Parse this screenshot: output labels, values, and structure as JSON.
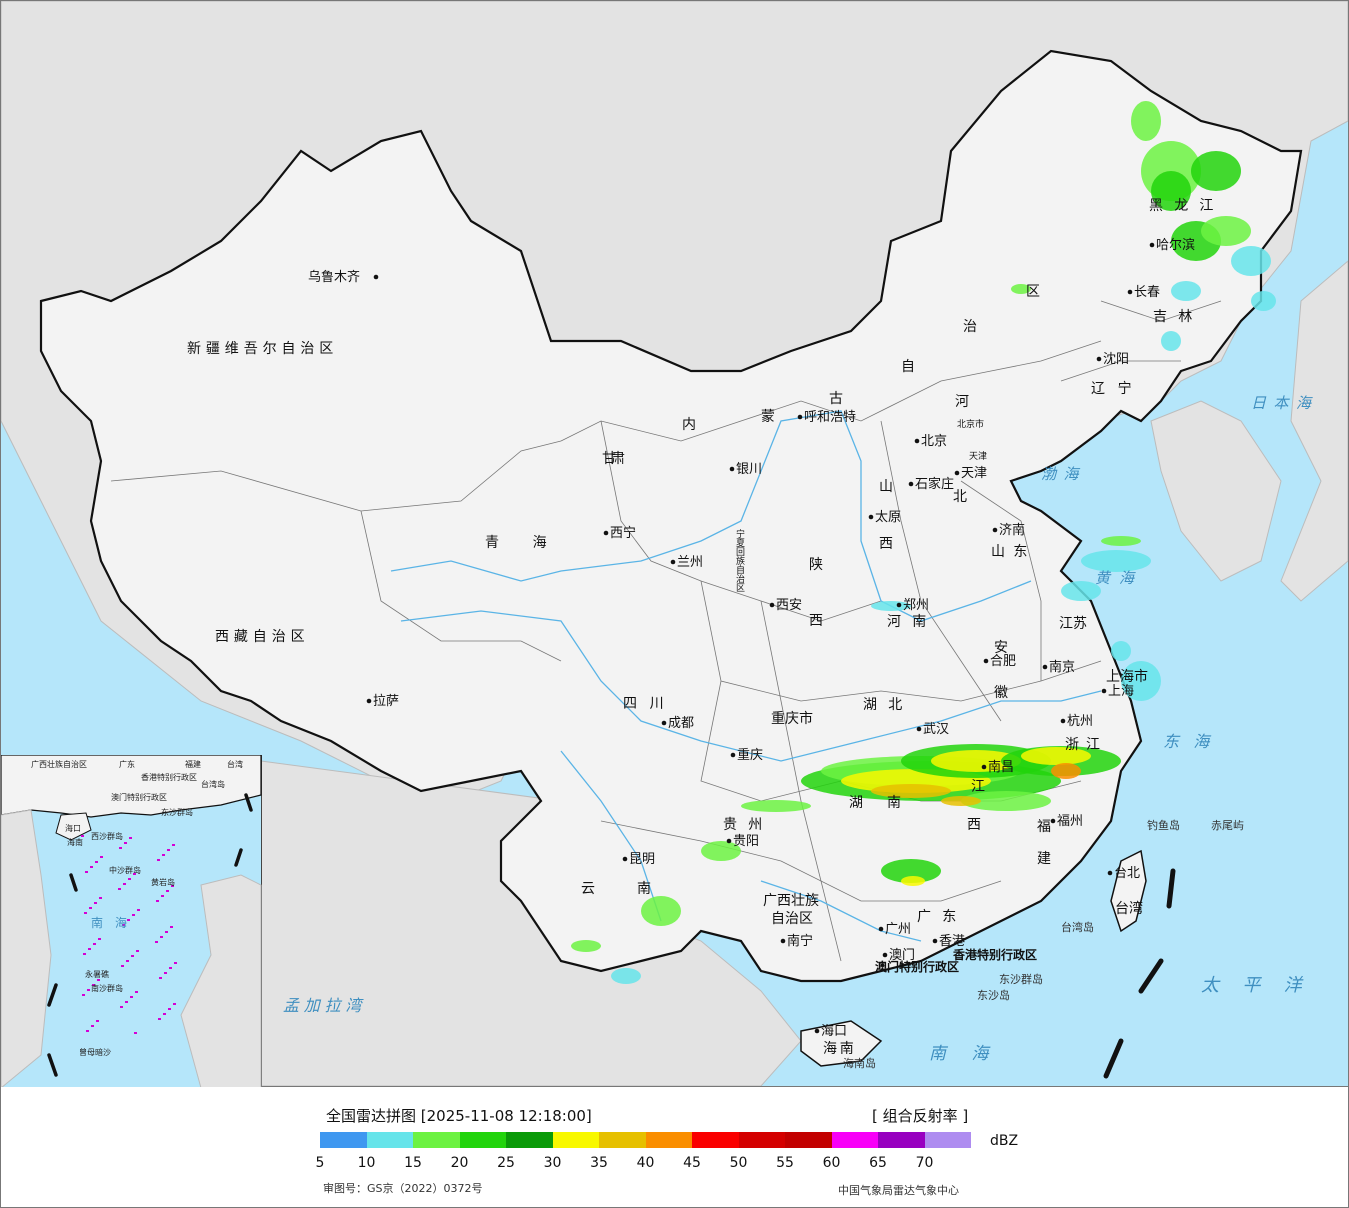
{
  "map": {
    "colors": {
      "sea": "#b5e6fa",
      "land_china": "#f2f2f2",
      "land_neighbor": "#e6e6e6",
      "border": "#111111",
      "river": "#5ab4e6"
    },
    "provinces": [
      {
        "name": "新疆维吾尔自治区"
      },
      {
        "name": "西藏自治区"
      },
      {
        "name": "青海"
      },
      {
        "name": "甘"
      },
      {
        "name": "肃"
      },
      {
        "name": "内"
      },
      {
        "name": "蒙"
      },
      {
        "name": "古"
      },
      {
        "name": "自"
      },
      {
        "name": "治"
      },
      {
        "name": "区"
      },
      {
        "name": "黑龙江"
      },
      {
        "name": "吉林"
      },
      {
        "name": "辽宁"
      },
      {
        "name": "河"
      },
      {
        "name": "北"
      },
      {
        "name": "山"
      },
      {
        "name": "西"
      },
      {
        "name": "陕"
      },
      {
        "name": "西"
      },
      {
        "name": "山东"
      },
      {
        "name": "河南"
      },
      {
        "name": "江苏"
      },
      {
        "name": "安"
      },
      {
        "name": "徽"
      },
      {
        "name": "上海市"
      },
      {
        "name": "浙江"
      },
      {
        "name": "湖北"
      },
      {
        "name": "湖"
      },
      {
        "name": "南"
      },
      {
        "name": "江"
      },
      {
        "name": "西"
      },
      {
        "name": "福"
      },
      {
        "name": "建"
      },
      {
        "name": "四川"
      },
      {
        "name": "重庆市"
      },
      {
        "name": "贵州"
      },
      {
        "name": "云"
      },
      {
        "name": "南"
      },
      {
        "name": "广西壮族"
      },
      {
        "name": "自治区"
      },
      {
        "name": "广东"
      },
      {
        "name": "海南"
      },
      {
        "name": "台湾"
      },
      {
        "name": "宁夏回族自治区"
      },
      {
        "name": "天津"
      },
      {
        "name": "北京市"
      },
      {
        "name": "香港特别行政区"
      },
      {
        "name": "澳门特别行政区"
      }
    ],
    "cities": [
      {
        "name": "乌鲁木齐"
      },
      {
        "name": "拉萨"
      },
      {
        "name": "西宁"
      },
      {
        "name": "兰州"
      },
      {
        "name": "银川"
      },
      {
        "name": "呼和浩特"
      },
      {
        "name": "哈尔滨"
      },
      {
        "name": "长春"
      },
      {
        "name": "沈阳"
      },
      {
        "name": "北京"
      },
      {
        "name": "天津"
      },
      {
        "name": "石家庄"
      },
      {
        "name": "太原"
      },
      {
        "name": "济南"
      },
      {
        "name": "郑州"
      },
      {
        "name": "西安"
      },
      {
        "name": "南京"
      },
      {
        "name": "合肥"
      },
      {
        "name": "上海"
      },
      {
        "name": "杭州"
      },
      {
        "name": "武汉"
      },
      {
        "name": "南昌"
      },
      {
        "name": "福州"
      },
      {
        "name": "台北"
      },
      {
        "name": "成都"
      },
      {
        "name": "重庆"
      },
      {
        "name": "贵阳"
      },
      {
        "name": "昆明"
      },
      {
        "name": "南宁"
      },
      {
        "name": "广州"
      },
      {
        "name": "香港"
      },
      {
        "name": "澳门"
      },
      {
        "name": "海口"
      }
    ],
    "seas": [
      {
        "name": "日本海"
      },
      {
        "name": "渤海"
      },
      {
        "name": "黄海"
      },
      {
        "name": "东海"
      },
      {
        "name": "太平洋"
      },
      {
        "name": "南海"
      },
      {
        "name": "孟加拉湾"
      }
    ],
    "islands": [
      {
        "name": "钓鱼岛"
      },
      {
        "name": "赤尾屿"
      },
      {
        "name": "台湾岛"
      },
      {
        "name": "东沙群岛"
      },
      {
        "name": "东沙岛"
      },
      {
        "name": "海南岛"
      }
    ],
    "inset": {
      "labels": [
        {
          "name": "广西壮族自治区"
        },
        {
          "name": "广东"
        },
        {
          "name": "福建"
        },
        {
          "name": "台湾"
        },
        {
          "name": "香港特别行政区"
        },
        {
          "name": "澳门特别行政区"
        },
        {
          "name": "台湾岛"
        },
        {
          "name": "东沙群岛"
        },
        {
          "name": "海口"
        },
        {
          "name": "海南"
        },
        {
          "name": "西沙群岛"
        },
        {
          "name": "中沙群岛"
        },
        {
          "name": "黄岩岛"
        },
        {
          "name": "南海"
        },
        {
          "name": "南沙群岛"
        },
        {
          "name": "永暑礁"
        },
        {
          "name": "曾母暗沙"
        }
      ]
    }
  },
  "legend": {
    "title": "全国雷达拼图 [2025-11-08 12:18:00]",
    "product": "[ 组合反射率 ]",
    "unit": "dBZ",
    "colors": [
      "#3f98f0",
      "#66e4ea",
      "#6cf242",
      "#22d40c",
      "#0a9a08",
      "#f8f800",
      "#e6c000",
      "#fa8e00",
      "#fa0000",
      "#d40000",
      "#c20000",
      "#f800f8",
      "#9800c0",
      "#ae8cf0"
    ],
    "ticks": [
      "5",
      "10",
      "15",
      "20",
      "25",
      "30",
      "35",
      "40",
      "45",
      "50",
      "55",
      "60",
      "65",
      "70"
    ],
    "approval": "审图号：GS京（2022）0372号",
    "agency": "中国气象局雷达气象中心"
  }
}
